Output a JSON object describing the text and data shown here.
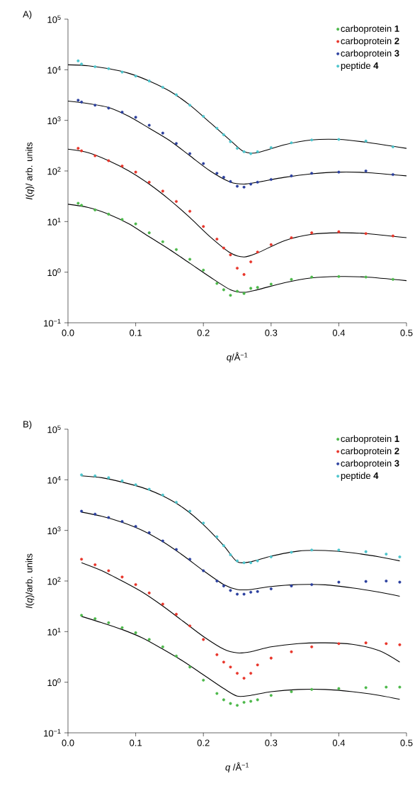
{
  "chart_data": [
    {
      "type": "scatter",
      "title": "A)",
      "xlabel": "*q*/Å$^{−1}$",
      "ylabel": "*I*(*q*)/ arb. units",
      "log": "y",
      "legend": "top right",
      "xlim": [
        0,
        0.5
      ],
      "ylim": [
        0.1,
        100000
      ],
      "xticks": [
        {
          "value": 0,
          "label": "0.0"
        },
        0.1,
        0.2,
        0.3,
        0.4,
        0.5
      ],
      "yticks": [
        {
          "value": 0.1,
          "label": "10$^{−1}$"
        },
        {
          "value": 1,
          "label": "10$^{0}$"
        },
        {
          "value": 10,
          "label": "10$^{1}$"
        },
        {
          "value": 100,
          "label": "10$^{2}$"
        },
        {
          "value": 1000,
          "label": "10$^{3}$"
        },
        {
          "value": 10000,
          "label": "10$^{4}$"
        },
        {
          "value": 100000,
          "label": "10$^{5}$"
        }
      ],
      "x": [
        0.015,
        0.02,
        0.04,
        0.06,
        0.08,
        0.1,
        0.12,
        0.14,
        0.16,
        0.18,
        0.2,
        0.22,
        0.23,
        0.24,
        0.25,
        0.26,
        0.27,
        0.28,
        0.3,
        0.33,
        0.36,
        0.4,
        0.44,
        0.48
      ],
      "series": [
        {
          "name": "carboprotein **1**",
          "marker": "circle",
          "color": "#4cb84a",
          "values": [
            23,
            21,
            17,
            14,
            11,
            9,
            6,
            4,
            2.8,
            1.8,
            1.1,
            0.6,
            0.45,
            0.35,
            0.42,
            0.38,
            0.48,
            0.5,
            0.58,
            0.72,
            0.8,
            0.82,
            0.8,
            0.72
          ]
        },
        {
          "name": "carboprotein **2**",
          "marker": "circle",
          "color": "#e8352a",
          "values": [
            280,
            250,
            200,
            160,
            125,
            95,
            60,
            40,
            25,
            16,
            8,
            4.5,
            3,
            2.2,
            1.2,
            0.9,
            1.6,
            2.5,
            3.5,
            4.8,
            6,
            6.3,
            5.8,
            5.2
          ]
        },
        {
          "name": "carboprotein **3**",
          "marker": "circle",
          "color": "#2a3f9e",
          "values": [
            2500,
            2300,
            2000,
            1750,
            1450,
            1150,
            800,
            560,
            350,
            220,
            140,
            90,
            75,
            62,
            50,
            48,
            55,
            60,
            68,
            80,
            90,
            95,
            100,
            85
          ]
        },
        {
          "name": "peptide **4**",
          "marker": "circle",
          "color": "#4bc4cc",
          "values": [
            15000,
            13000,
            11500,
            10500,
            9000,
            7500,
            6000,
            4500,
            3200,
            2000,
            1200,
            700,
            520,
            380,
            280,
            240,
            220,
            240,
            290,
            360,
            410,
            420,
            390,
            300
          ]
        },
        {
          "type": "line",
          "marker": "none",
          "color": "#000000",
          "line_style": "solid",
          "x": [
            0,
            0.03,
            0.06,
            0.09,
            0.12,
            0.15,
            0.18,
            0.21,
            0.24,
            0.26,
            0.28,
            0.32,
            0.36,
            0.4,
            0.44,
            0.5
          ],
          "values": [
            22,
            19,
            14,
            9,
            5,
            2.8,
            1.5,
            0.8,
            0.45,
            0.4,
            0.45,
            0.62,
            0.77,
            0.82,
            0.8,
            0.68
          ]
        },
        {
          "type": "line",
          "marker": "none",
          "color": "#000000",
          "line_style": "solid",
          "x": [
            0,
            0.03,
            0.06,
            0.09,
            0.12,
            0.15,
            0.18,
            0.21,
            0.24,
            0.26,
            0.28,
            0.32,
            0.36,
            0.4,
            0.44,
            0.5
          ],
          "values": [
            270,
            230,
            160,
            100,
            55,
            27,
            12,
            5,
            2.4,
            2,
            2.4,
            4.2,
            5.6,
            6,
            5.8,
            4.8
          ]
        },
        {
          "type": "line",
          "marker": "none",
          "color": "#000000",
          "line_style": "solid",
          "x": [
            0,
            0.03,
            0.06,
            0.09,
            0.12,
            0.15,
            0.18,
            0.21,
            0.24,
            0.26,
            0.28,
            0.32,
            0.36,
            0.4,
            0.44,
            0.5
          ],
          "values": [
            2400,
            2150,
            1800,
            1200,
            700,
            400,
            200,
            100,
            60,
            55,
            60,
            75,
            88,
            95,
            93,
            80
          ]
        },
        {
          "type": "line",
          "marker": "none",
          "color": "#000000",
          "line_style": "solid",
          "x": [
            0,
            0.03,
            0.06,
            0.09,
            0.12,
            0.15,
            0.18,
            0.21,
            0.24,
            0.26,
            0.28,
            0.32,
            0.36,
            0.4,
            0.44,
            0.5
          ],
          "values": [
            12500,
            12000,
            10500,
            8500,
            6000,
            3800,
            2000,
            900,
            400,
            240,
            230,
            330,
            410,
            420,
            370,
            280
          ]
        }
      ]
    },
    {
      "type": "scatter",
      "title": "B)",
      "xlabel": "*q* /Å$^{−1}$",
      "ylabel": "*I*(*q*)/arb. units",
      "log": "y",
      "legend": "top right",
      "xlim": [
        0,
        0.5
      ],
      "ylim": [
        0.1,
        100000
      ],
      "xticks": [
        {
          "value": 0,
          "label": "0.0"
        },
        0.1,
        0.2,
        0.3,
        0.4,
        0.5
      ],
      "yticks": [
        {
          "value": 0.1,
          "label": "10$^{−1}$"
        },
        {
          "value": 1,
          "label": "10$^{0}$"
        },
        {
          "value": 10,
          "label": "10$^{1}$"
        },
        {
          "value": 100,
          "label": "10$^{2}$"
        },
        {
          "value": 1000,
          "label": "10$^{3}$"
        },
        {
          "value": 10000,
          "label": "10$^{4}$"
        },
        {
          "value": 100000,
          "label": "10$^{5}$"
        }
      ],
      "x": [
        0.02,
        0.04,
        0.06,
        0.08,
        0.1,
        0.12,
        0.14,
        0.16,
        0.18,
        0.2,
        0.22,
        0.23,
        0.24,
        0.25,
        0.26,
        0.27,
        0.28,
        0.3,
        0.33,
        0.36,
        0.4,
        0.44,
        0.47,
        0.49
      ],
      "series": [
        {
          "name": "carboprotein **1**",
          "marker": "circle",
          "color": "#4cb84a",
          "values": [
            21,
            18,
            15,
            12,
            9.5,
            7,
            5,
            3.3,
            2,
            1.1,
            0.6,
            0.45,
            0.38,
            0.35,
            0.4,
            0.42,
            0.45,
            0.55,
            0.65,
            0.72,
            0.75,
            0.78,
            0.8,
            0.8
          ]
        },
        {
          "name": "carboprotein **2**",
          "marker": "circle",
          "color": "#e8352a",
          "values": [
            270,
            210,
            160,
            120,
            85,
            58,
            35,
            22,
            13,
            7,
            3.5,
            2.5,
            2,
            1.5,
            1.2,
            1.5,
            2.2,
            3,
            4,
            5,
            5.8,
            6,
            5.8,
            5.5
          ]
        },
        {
          "name": "carboprotein **3**",
          "marker": "circle",
          "color": "#2a3f9e",
          "values": [
            2400,
            2100,
            1800,
            1500,
            1200,
            900,
            620,
            420,
            270,
            160,
            100,
            80,
            65,
            55,
            55,
            60,
            62,
            70,
            80,
            85,
            95,
            98,
            100,
            95
          ]
        },
        {
          "name": "peptide **4**",
          "marker": "circle",
          "color": "#4bc4cc",
          "values": [
            12500,
            12000,
            11000,
            9500,
            8000,
            6500,
            5000,
            3600,
            2400,
            1400,
            750,
            500,
            330,
            250,
            230,
            230,
            250,
            300,
            370,
            410,
            410,
            380,
            340,
            300
          ]
        },
        {
          "type": "line",
          "marker": "none",
          "color": "#000000",
          "line_style": "solid",
          "x": [
            0.02,
            0.05,
            0.08,
            0.11,
            0.14,
            0.17,
            0.2,
            0.23,
            0.25,
            0.27,
            0.3,
            0.34,
            0.38,
            0.42,
            0.46,
            0.49
          ],
          "values": [
            20,
            15,
            11,
            7.5,
            4.5,
            2.6,
            1.4,
            0.75,
            0.53,
            0.55,
            0.65,
            0.72,
            0.72,
            0.65,
            0.55,
            0.46
          ]
        },
        {
          "type": "line",
          "marker": "none",
          "color": "#000000",
          "line_style": "solid",
          "x": [
            0.02,
            0.05,
            0.08,
            0.11,
            0.14,
            0.17,
            0.2,
            0.23,
            0.25,
            0.27,
            0.3,
            0.34,
            0.38,
            0.42,
            0.46,
            0.49
          ],
          "values": [
            230,
            160,
            100,
            60,
            32,
            16,
            8,
            4.5,
            3.8,
            4,
            5,
            5.8,
            6,
            5.6,
            4.2,
            2.5
          ]
        },
        {
          "type": "line",
          "marker": "none",
          "color": "#000000",
          "line_style": "solid",
          "x": [
            0.02,
            0.05,
            0.08,
            0.11,
            0.14,
            0.17,
            0.2,
            0.23,
            0.25,
            0.27,
            0.3,
            0.34,
            0.38,
            0.42,
            0.46,
            0.49
          ],
          "values": [
            2300,
            1900,
            1450,
            1000,
            600,
            320,
            160,
            85,
            68,
            68,
            78,
            85,
            84,
            73,
            60,
            50
          ]
        },
        {
          "type": "line",
          "marker": "none",
          "color": "#000000",
          "line_style": "solid",
          "x": [
            0.02,
            0.05,
            0.08,
            0.11,
            0.14,
            0.17,
            0.2,
            0.23,
            0.25,
            0.27,
            0.3,
            0.34,
            0.38,
            0.42,
            0.46,
            0.49
          ],
          "values": [
            12000,
            11000,
            9000,
            7000,
            4800,
            2800,
            1300,
            500,
            240,
            240,
            310,
            390,
            400,
            360,
            300,
            250
          ]
        }
      ]
    }
  ]
}
